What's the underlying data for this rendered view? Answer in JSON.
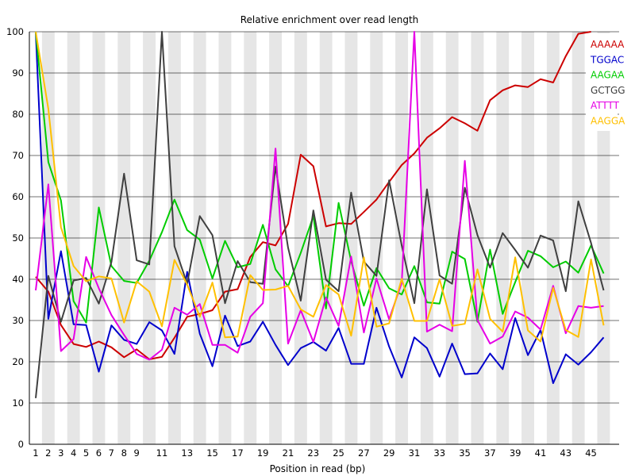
{
  "chart_data": {
    "type": "line",
    "title": "Relative enrichment over read length",
    "xlabel": "Position in read (bp)",
    "ylabel": "",
    "ylim": [
      0,
      100
    ],
    "yticks": [
      0,
      10,
      20,
      30,
      40,
      50,
      60,
      70,
      80,
      90,
      100
    ],
    "xlim": [
      1,
      46
    ],
    "xticks": [
      1,
      2,
      3,
      4,
      5,
      6,
      7,
      8,
      9,
      11,
      13,
      15,
      17,
      19,
      21,
      23,
      25,
      27,
      29,
      31,
      33,
      35,
      37,
      39,
      41,
      43,
      45
    ],
    "x": [
      1,
      2,
      3,
      4,
      5,
      6,
      7,
      8,
      9,
      10,
      11,
      12,
      13,
      14,
      15,
      16,
      17,
      18,
      19,
      20,
      21,
      22,
      23,
      24,
      25,
      26,
      27,
      28,
      29,
      30,
      31,
      32,
      33,
      34,
      35,
      36,
      37,
      38,
      39,
      40,
      41,
      42,
      43,
      44,
      45,
      46
    ],
    "grid": "alternating vertical bands",
    "legend_position": "top-right",
    "series": [
      {
        "name": "AAAAA",
        "color": "#cc0000",
        "values": [
          40.6,
          37.0,
          28.9,
          24.3,
          23.6,
          24.9,
          23.5,
          21.1,
          23.0,
          20.6,
          21.2,
          25.8,
          30.9,
          31.6,
          32.5,
          37.0,
          37.6,
          45.4,
          49.0,
          48.2,
          53.4,
          70.2,
          67.4,
          52.8,
          53.6,
          53.4,
          56.3,
          59.3,
          63.6,
          67.7,
          70.5,
          74.3,
          76.6,
          79.3,
          77.8,
          76.0,
          83.4,
          85.8,
          87.0,
          86.6,
          88.5,
          87.7,
          94.1,
          99.5,
          100.0,
          null
        ]
      },
      {
        "name": "TGGAC",
        "color": "#0000cc",
        "values": [
          100.0,
          30.4,
          46.8,
          29.1,
          28.9,
          17.6,
          28.8,
          25.3,
          24.3,
          29.6,
          27.6,
          21.9,
          41.8,
          26.8,
          18.9,
          31.2,
          23.8,
          24.9,
          29.7,
          24.1,
          19.2,
          23.3,
          24.8,
          22.7,
          28.2,
          19.5,
          19.5,
          33.1,
          23.7,
          16.2,
          25.9,
          23.3,
          16.4,
          24.4,
          17.0,
          17.2,
          22.0,
          18.2,
          30.6,
          21.6,
          27.7,
          14.8,
          21.8,
          19.3,
          22.3,
          25.9
        ]
      },
      {
        "name": "AAGAA",
        "color": "#00cc00",
        "values": [
          100.0,
          68.4,
          59.1,
          34.7,
          29.5,
          57.4,
          43.2,
          39.6,
          39.1,
          44.5,
          51.4,
          59.3,
          51.9,
          49.6,
          40.2,
          49.3,
          42.9,
          43.7,
          53.2,
          42.4,
          38.3,
          46.4,
          55.3,
          32.9,
          58.5,
          44.4,
          33.6,
          42.7,
          37.8,
          36.3,
          43.2,
          34.4,
          34.1,
          46.7,
          44.9,
          29.7,
          47.2,
          31.6,
          39.3,
          46.9,
          45.6,
          42.9,
          44.3,
          41.6,
          48.2,
          41.4
        ]
      },
      {
        "name": "GCTGG",
        "color": "#404040",
        "values": [
          11.2,
          40.8,
          29.7,
          39.7,
          40.3,
          34.1,
          44.2,
          65.6,
          44.6,
          43.6,
          100.0,
          48.0,
          38.9,
          55.3,
          50.7,
          34.2,
          44.4,
          39.3,
          38.9,
          67.3,
          47.7,
          34.8,
          56.7,
          39.9,
          37.1,
          61.0,
          44.3,
          40.8,
          64.0,
          48.2,
          34.2,
          61.8,
          40.9,
          38.9,
          62.2,
          50.7,
          42.8,
          51.2,
          47.1,
          42.8,
          50.6,
          49.4,
          37.1,
          58.9,
          48.8,
          37.3
        ]
      },
      {
        "name": "ATTTT",
        "color": "#e600e6",
        "values": [
          37.3,
          63.0,
          22.6,
          25.5,
          45.4,
          37.8,
          31.3,
          26.5,
          21.9,
          20.5,
          22.9,
          33.1,
          31.4,
          34.0,
          24.1,
          24.1,
          22.2,
          30.9,
          34.2,
          71.7,
          24.4,
          32.5,
          24.8,
          35.6,
          28.7,
          45.5,
          27.1,
          40.2,
          30.3,
          39.1,
          100.0,
          27.3,
          29.0,
          27.4,
          68.7,
          30.1,
          24.4,
          26.1,
          32.2,
          30.7,
          27.8,
          38.4,
          26.9,
          33.5,
          33.1,
          33.5
        ]
      },
      {
        "name": "AAGGA",
        "color": "#ffc000",
        "values": [
          100.0,
          81.3,
          52.6,
          43.2,
          39.5,
          40.7,
          40.2,
          29.5,
          39.5,
          37.0,
          28.6,
          44.7,
          38.7,
          30.9,
          39.2,
          25.9,
          26.1,
          41.0,
          37.4,
          37.5,
          38.4,
          32.7,
          30.9,
          38.6,
          36.3,
          26.3,
          45.3,
          28.5,
          29.3,
          40.1,
          29.9,
          29.9,
          40.0,
          28.7,
          29.2,
          42.4,
          30.4,
          27.3,
          45.3,
          27.6,
          24.9,
          37.9,
          27.7,
          26.0,
          44.8,
          28.8
        ]
      }
    ]
  }
}
